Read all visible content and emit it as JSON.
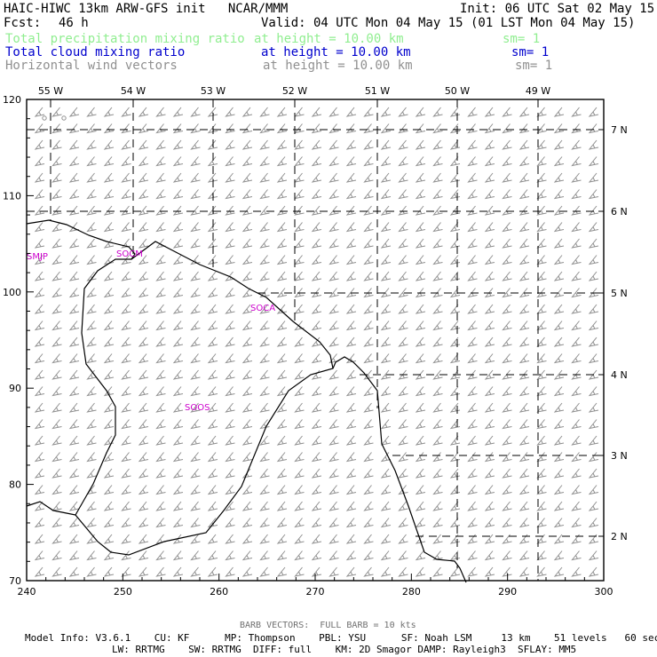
{
  "header": {
    "title": "HAIC-HIWC 13km ARW-GFS init   NCAR/MMM",
    "init": "Init: 06 UTC Sat 02 May 15",
    "fcst_label": "Fcst:",
    "fcst_value": "46 h",
    "valid": "Valid: 04 UTC Mon 04 May 15 (01 LST Mon 04 May 15)",
    "fields": [
      {
        "name": "Total precipitation mixing ratio",
        "height": "at height = 10.00 km",
        "sm": "sm= 1",
        "color": "#90ee90"
      },
      {
        "name": "Total cloud mixing ratio",
        "height": "at height = 10.00 km",
        "sm": "sm= 1",
        "color": "#0000cd"
      },
      {
        "name": "Horizontal wind vectors",
        "height": "at height = 10.00 km",
        "sm": "sm= 1",
        "color": "#909090"
      }
    ]
  },
  "map": {
    "x_ticks": [
      "240",
      "250",
      "260",
      "270",
      "280",
      "290",
      "300"
    ],
    "y_ticks": [
      "70",
      "80",
      "90",
      "100",
      "110",
      "120"
    ],
    "lon_labels": [
      "55 W",
      "54 W",
      "53 W",
      "52 W",
      "51 W",
      "50 W",
      "49 W"
    ],
    "lat_labels": [
      "7 N",
      "6 N",
      "5 N",
      "4 N",
      "3 N",
      "2 N"
    ],
    "stations": [
      "SMJP",
      "SOCM",
      "SOCA",
      "SOOS"
    ],
    "site_color": "#cc00cc",
    "barb_color": "#909090"
  },
  "footer": {
    "barb_note": "BARB VECTORS:  FULL BARB = 10 kts",
    "model_line1": "Model Info: V3.6.1    CU: KF      MP: Thompson    PBL: YSU      SF: Noah LSM     13 km    51 levels   60 sec",
    "model_line2": "LW: RRTMG    SW: RRTMG  DIFF: full    KM: 2D Smagor DAMP: Rayleigh3  SFLAY: MM5"
  }
}
